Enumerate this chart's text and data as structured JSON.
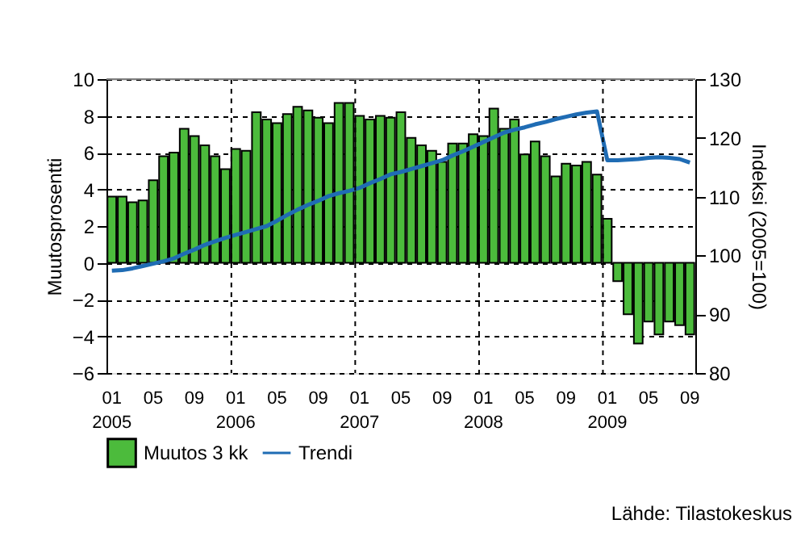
{
  "chart_data": {
    "type": "bar",
    "categories": [
      "01\n2005",
      null,
      null,
      null,
      "05",
      null,
      null,
      null,
      "09",
      null,
      null,
      null,
      "01\n2006",
      null,
      null,
      null,
      "05",
      null,
      null,
      null,
      "09",
      null,
      null,
      null,
      "01\n2007",
      null,
      null,
      null,
      "05",
      null,
      null,
      null,
      "09",
      null,
      null,
      null,
      "01\n2008",
      null,
      null,
      null,
      "05",
      null,
      null,
      null,
      "09",
      null,
      null,
      null,
      "01\n2009",
      null,
      null,
      null,
      "05",
      null,
      null,
      null,
      "09"
    ],
    "series": [
      {
        "name": "Muutos 3 kk",
        "color": "#4cbb3c",
        "values": [
          3.6,
          3.6,
          3.3,
          3.4,
          4.5,
          5.8,
          6.0,
          7.3,
          6.9,
          6.4,
          5.8,
          5.1,
          6.2,
          6.1,
          8.2,
          7.8,
          7.6,
          8.1,
          8.5,
          8.3,
          7.9,
          7.6,
          8.7,
          8.7,
          8.0,
          7.8,
          8.0,
          7.9,
          8.2,
          6.8,
          6.4,
          6.1,
          5.5,
          6.5,
          6.5,
          7.0,
          6.9,
          8.4,
          7.3,
          7.8,
          5.9,
          6.6,
          5.8,
          4.7,
          5.4,
          5.3,
          5.5,
          4.8,
          2.4,
          -1.0,
          -2.8,
          -4.4,
          -3.2,
          -3.9,
          -3.2,
          -3.4,
          -3.9
        ]
      },
      {
        "name": "Trendi",
        "type": "line",
        "axis": "y2",
        "color": "#1f6cb4",
        "values": [
          97.4,
          97.5,
          97.8,
          98.2,
          98.6,
          99.0,
          99.5,
          100.3,
          101.0,
          101.8,
          102.4,
          103.0,
          103.5,
          104.0,
          104.5,
          105.0,
          105.9,
          106.9,
          107.8,
          108.6,
          109.3,
          110.1,
          110.6,
          111.0,
          111.5,
          112.3,
          113.0,
          113.8,
          114.2,
          114.7,
          115.2,
          115.7,
          116.2,
          117.0,
          117.7,
          118.5,
          119.3,
          120.1,
          120.9,
          121.4,
          121.8,
          122.3,
          122.7,
          123.2,
          123.6,
          124.0,
          124.3,
          124.5,
          116.2,
          116.2,
          116.3,
          116.4,
          116.6,
          116.7,
          116.6,
          116.4,
          115.8
        ]
      }
    ],
    "ylabel": "Muutosprosentti",
    "y2label": "Indeksi (2005=100)",
    "ylim": [
      -6,
      10
    ],
    "yticks": [
      -6,
      -4,
      -2,
      0,
      2,
      4,
      6,
      8,
      10
    ],
    "y2lim": [
      80,
      130
    ],
    "y2ticks": [
      80,
      90,
      100,
      110,
      120,
      130
    ],
    "grid": true,
    "legend": "bottom",
    "line_style": "solid",
    "marker": "none",
    "annotations": [
      "Lähde: Tilastokeskus"
    ]
  }
}
